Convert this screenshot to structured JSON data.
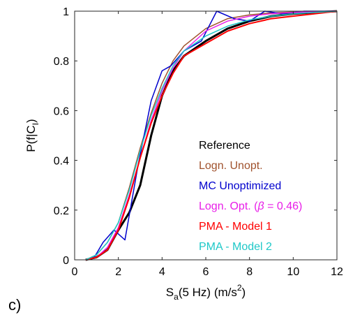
{
  "panel_label": "c)",
  "chart_data": {
    "type": "line",
    "xlabel": {
      "base": "S",
      "sub": "a",
      "rest": "(5 Hz) (m/s",
      "sup": "2",
      "close": ")"
    },
    "ylabel": {
      "base": "P(f|C",
      "sub": "I",
      "close": ")"
    },
    "xlim": [
      0,
      12
    ],
    "ylim": [
      0,
      1
    ],
    "x_ticks": [
      0,
      2,
      4,
      6,
      8,
      10,
      12
    ],
    "y_ticks": [
      0,
      0.2,
      0.4,
      0.6,
      0.8,
      1
    ],
    "x_tick_labels": [
      "0",
      "2",
      "4",
      "6",
      "8",
      "10",
      "12"
    ],
    "y_tick_labels": [
      "0",
      "0.2",
      "0.4",
      "0.6",
      "0.8",
      "1"
    ],
    "grid": false,
    "legend_position": "bottom-right",
    "series": [
      {
        "name": "Reference",
        "color": "#000000",
        "width": 3,
        "x": [
          0.5,
          1.0,
          1.5,
          2.0,
          2.5,
          3.0,
          3.5,
          4.0,
          4.5,
          5.0,
          6.0,
          7.0,
          8.0,
          9.0,
          10.0,
          11.0,
          12.0
        ],
        "y": [
          0.0,
          0.01,
          0.04,
          0.12,
          0.19,
          0.3,
          0.5,
          0.66,
          0.76,
          0.82,
          0.88,
          0.93,
          0.96,
          0.98,
          0.99,
          0.995,
          1.0
        ]
      },
      {
        "name": "Logn. Unopt.",
        "color": "#a0522d",
        "width": 1.5,
        "x": [
          0.5,
          1.0,
          1.5,
          2.0,
          2.5,
          3.0,
          3.5,
          4.0,
          4.5,
          5.0,
          6.0,
          7.0,
          8.0,
          9.0,
          10.0,
          11.0,
          12.0
        ],
        "y": [
          0.0,
          0.02,
          0.07,
          0.15,
          0.29,
          0.45,
          0.59,
          0.71,
          0.8,
          0.86,
          0.93,
          0.97,
          0.985,
          0.993,
          0.997,
          0.999,
          1.0
        ]
      },
      {
        "name": "MC Unoptimized",
        "color": "#0000cd",
        "width": 1.5,
        "x": [
          0.5,
          0.9,
          1.3,
          1.8,
          2.3,
          2.9,
          3.5,
          4.0,
          4.4,
          5.0,
          5.8,
          6.5,
          7.3,
          8.0,
          8.7,
          9.5,
          10.5,
          12.0
        ],
        "y": [
          0.0,
          0.01,
          0.07,
          0.12,
          0.08,
          0.38,
          0.64,
          0.76,
          0.78,
          0.84,
          0.88,
          1.0,
          0.97,
          0.96,
          1.0,
          0.99,
          1.0,
          1.0
        ]
      },
      {
        "name": "Logn. Opt. (β = 0.46)",
        "label_parts": [
          "Logn. Opt. (",
          "β",
          " = 0.46)"
        ],
        "color": "#e81ee8",
        "width": 1.5,
        "x": [
          0.5,
          1.0,
          1.5,
          2.0,
          2.5,
          3.0,
          3.5,
          4.0,
          4.5,
          5.0,
          6.0,
          7.0,
          8.0,
          9.0,
          10.0,
          11.0,
          12.0
        ],
        "y": [
          0.0,
          0.01,
          0.05,
          0.13,
          0.26,
          0.41,
          0.56,
          0.68,
          0.77,
          0.84,
          0.92,
          0.96,
          0.98,
          0.99,
          0.995,
          0.998,
          1.0
        ]
      },
      {
        "name": "PMA - Model 1",
        "color": "#ff0000",
        "width": 2,
        "x": [
          0.5,
          1.0,
          1.5,
          2.0,
          2.5,
          3.0,
          3.5,
          4.0,
          4.5,
          5.0,
          6.0,
          7.0,
          8.0,
          9.0,
          10.0,
          11.0,
          12.0
        ],
        "y": [
          0.0,
          0.01,
          0.04,
          0.12,
          0.25,
          0.41,
          0.55,
          0.66,
          0.75,
          0.82,
          0.87,
          0.92,
          0.95,
          0.97,
          0.98,
          0.99,
          1.0
        ]
      },
      {
        "name": "PMA - Model 2",
        "color": "#1ec8c8",
        "width": 1.5,
        "x": [
          0.5,
          1.0,
          1.5,
          2.0,
          2.5,
          3.0,
          3.5,
          4.0,
          4.5,
          5.0,
          6.0,
          7.0,
          8.0,
          9.0,
          10.0,
          11.0,
          12.0
        ],
        "y": [
          0.0,
          0.02,
          0.07,
          0.15,
          0.28,
          0.44,
          0.58,
          0.69,
          0.78,
          0.84,
          0.9,
          0.94,
          0.965,
          0.98,
          0.99,
          0.995,
          1.0
        ]
      }
    ]
  }
}
